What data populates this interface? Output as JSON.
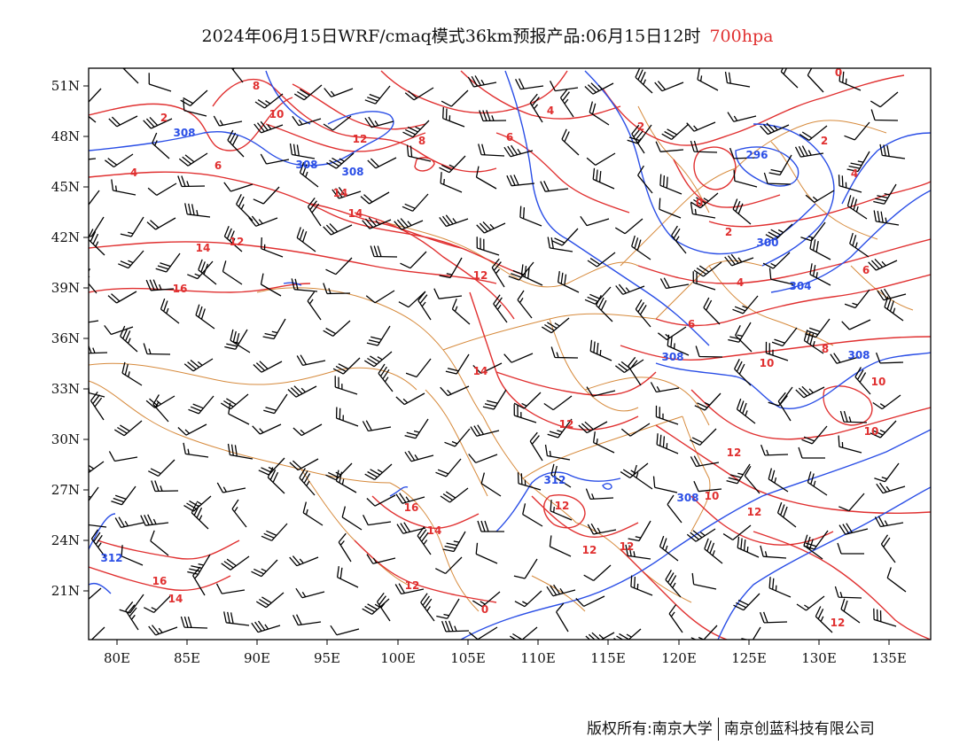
{
  "title": {
    "main": "2024年06月15日WRF/cmaq模式36km预报产品:06月15日12时",
    "level": "700hpa"
  },
  "footer": {
    "left": "版权所有:南京大学",
    "right": "南京创蓝科技有限公司"
  },
  "colors": {
    "height_contour": "#2a4ee6",
    "temperature_contour": "#e03030",
    "boundary": "#d68a3c",
    "wind_barb": "#000000"
  },
  "axes": {
    "lon_labels": [
      "80E",
      "85E",
      "90E",
      "95E",
      "100E",
      "105E",
      "110E",
      "115E",
      "120E",
      "125E",
      "130E",
      "135E"
    ],
    "lat_labels": [
      "51N",
      "48N",
      "45N",
      "42N",
      "39N",
      "36N",
      "33N",
      "30N",
      "27N",
      "24N",
      "21N"
    ]
  },
  "labels": {
    "height": [
      "308",
      "308",
      "308",
      "296",
      "300",
      "304",
      "308",
      "308",
      "312",
      "308",
      "312"
    ],
    "temperature": [
      "8",
      "10",
      "2",
      "4",
      "6",
      "12",
      "8",
      "6",
      "4",
      "14",
      "14",
      "12",
      "14",
      "16",
      "12",
      "2",
      "0",
      "2",
      "4",
      "0",
      "2",
      "6",
      "4",
      "6",
      "8",
      "10",
      "10",
      "14",
      "12",
      "12",
      "10",
      "12",
      "10",
      "12",
      "16",
      "14",
      "12",
      "12",
      "16",
      "14",
      "12",
      "0",
      "12"
    ]
  }
}
